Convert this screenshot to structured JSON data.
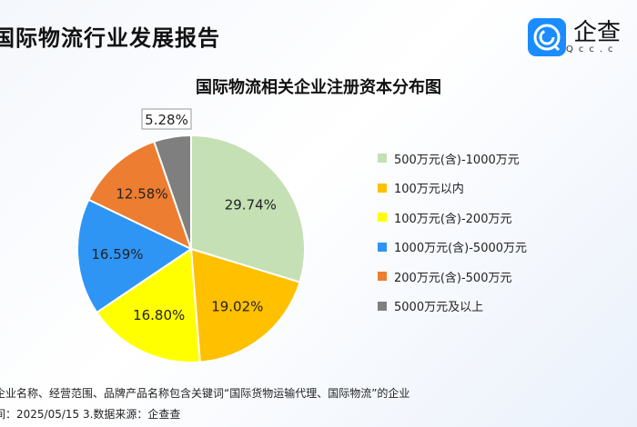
{
  "report_title": "国际物流行业发展报告",
  "logo": {
    "name": "企查",
    "sub": "Qcc.c"
  },
  "chart_data": {
    "type": "pie",
    "title": "国际物流相关企业注册资本分布图",
    "legend_position": "right",
    "slices": [
      {
        "label": "500万元(含)-1000万元",
        "value": 29.74,
        "display": "29.74%",
        "color": "#c5e0b4"
      },
      {
        "label": "100万元以内",
        "value": 19.02,
        "display": "19.02%",
        "color": "#ffc000"
      },
      {
        "label": "100万元(含)-200万元",
        "value": 16.8,
        "display": "16.80%",
        "color": "#ffff00"
      },
      {
        "label": "1000万元(含)-5000万元",
        "value": 16.59,
        "display": "16.59%",
        "color": "#2e95f5"
      },
      {
        "label": "200万元(含)-500万元",
        "value": 12.58,
        "display": "12.58%",
        "color": "#ed7d31"
      },
      {
        "label": "5000万元及以上",
        "value": 5.28,
        "display": "5.28%",
        "color": "#7f7f7f"
      }
    ]
  },
  "footer": {
    "line1": ":",
    "line2": "企业名称、经营范围、品牌产品名称包含关键词“国际货物运输代理、国际物流”的企业",
    "line3": "间：2025/05/15    3.数据来源：企查查"
  }
}
